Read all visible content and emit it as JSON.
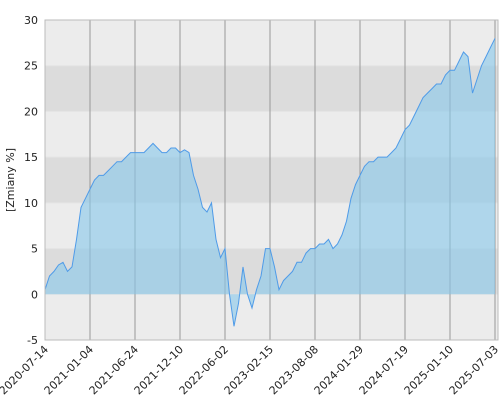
{
  "chart_data": {
    "type": "area",
    "y_label": "[Zmiany %]",
    "categories": [
      "2020-07-14",
      null,
      null,
      null,
      null,
      null,
      null,
      null,
      null,
      null,
      "2021-01-04",
      null,
      null,
      null,
      null,
      null,
      null,
      null,
      null,
      null,
      "2021-06-24",
      null,
      null,
      null,
      null,
      null,
      null,
      null,
      null,
      null,
      "2021-12-10",
      null,
      null,
      null,
      null,
      null,
      null,
      null,
      null,
      null,
      "2022-06-02",
      null,
      null,
      null,
      null,
      null,
      null,
      null,
      null,
      null,
      "2023-02-15",
      null,
      null,
      null,
      null,
      null,
      null,
      null,
      null,
      null,
      "2023-08-08",
      null,
      null,
      null,
      null,
      null,
      null,
      null,
      null,
      null,
      "2024-01-29",
      null,
      null,
      null,
      null,
      null,
      null,
      null,
      null,
      null,
      "2024-07-19",
      null,
      null,
      null,
      null,
      null,
      null,
      null,
      null,
      null,
      "2025-01-10",
      null,
      null,
      null,
      null,
      null,
      null,
      null,
      null,
      null,
      "2025-07-03"
    ],
    "series": [
      {
        "color": "#4f9be8",
        "values": [
          0.5,
          2,
          2.5,
          3.2,
          3.5,
          2.5,
          3,
          6,
          9.5,
          10.5,
          11.5,
          12.5,
          13,
          13,
          13.5,
          14,
          14.5,
          14.5,
          15,
          15.5,
          15.5,
          15.5,
          15.5,
          16,
          16.5,
          16,
          15.5,
          15.5,
          16,
          16,
          15.5,
          15.8,
          15.5,
          13,
          11.5,
          9.5,
          9,
          10,
          6,
          4,
          5,
          0,
          -3.5,
          -1,
          3,
          0,
          -1.5,
          0.5,
          2,
          5,
          5,
          3,
          0.5,
          1.5,
          2,
          2.5,
          3.5,
          3.5,
          4.5,
          5,
          5,
          5.5,
          5.5,
          6,
          5,
          5.5,
          6.5,
          8,
          10.5,
          12,
          13,
          14,
          14.5,
          14.5,
          15,
          15,
          15,
          15.5,
          16,
          17,
          18,
          18.5,
          19.5,
          20.5,
          21.5,
          22,
          22.5,
          23,
          23,
          24,
          24.5,
          24.5,
          25.5,
          26.5,
          26,
          22,
          23.5,
          25,
          26,
          27,
          28
        ]
      }
    ],
    "ylim": [
      -5,
      30
    ],
    "yticks": [
      -5,
      0,
      5,
      10,
      15,
      20,
      25,
      30
    ],
    "grid": true
  }
}
